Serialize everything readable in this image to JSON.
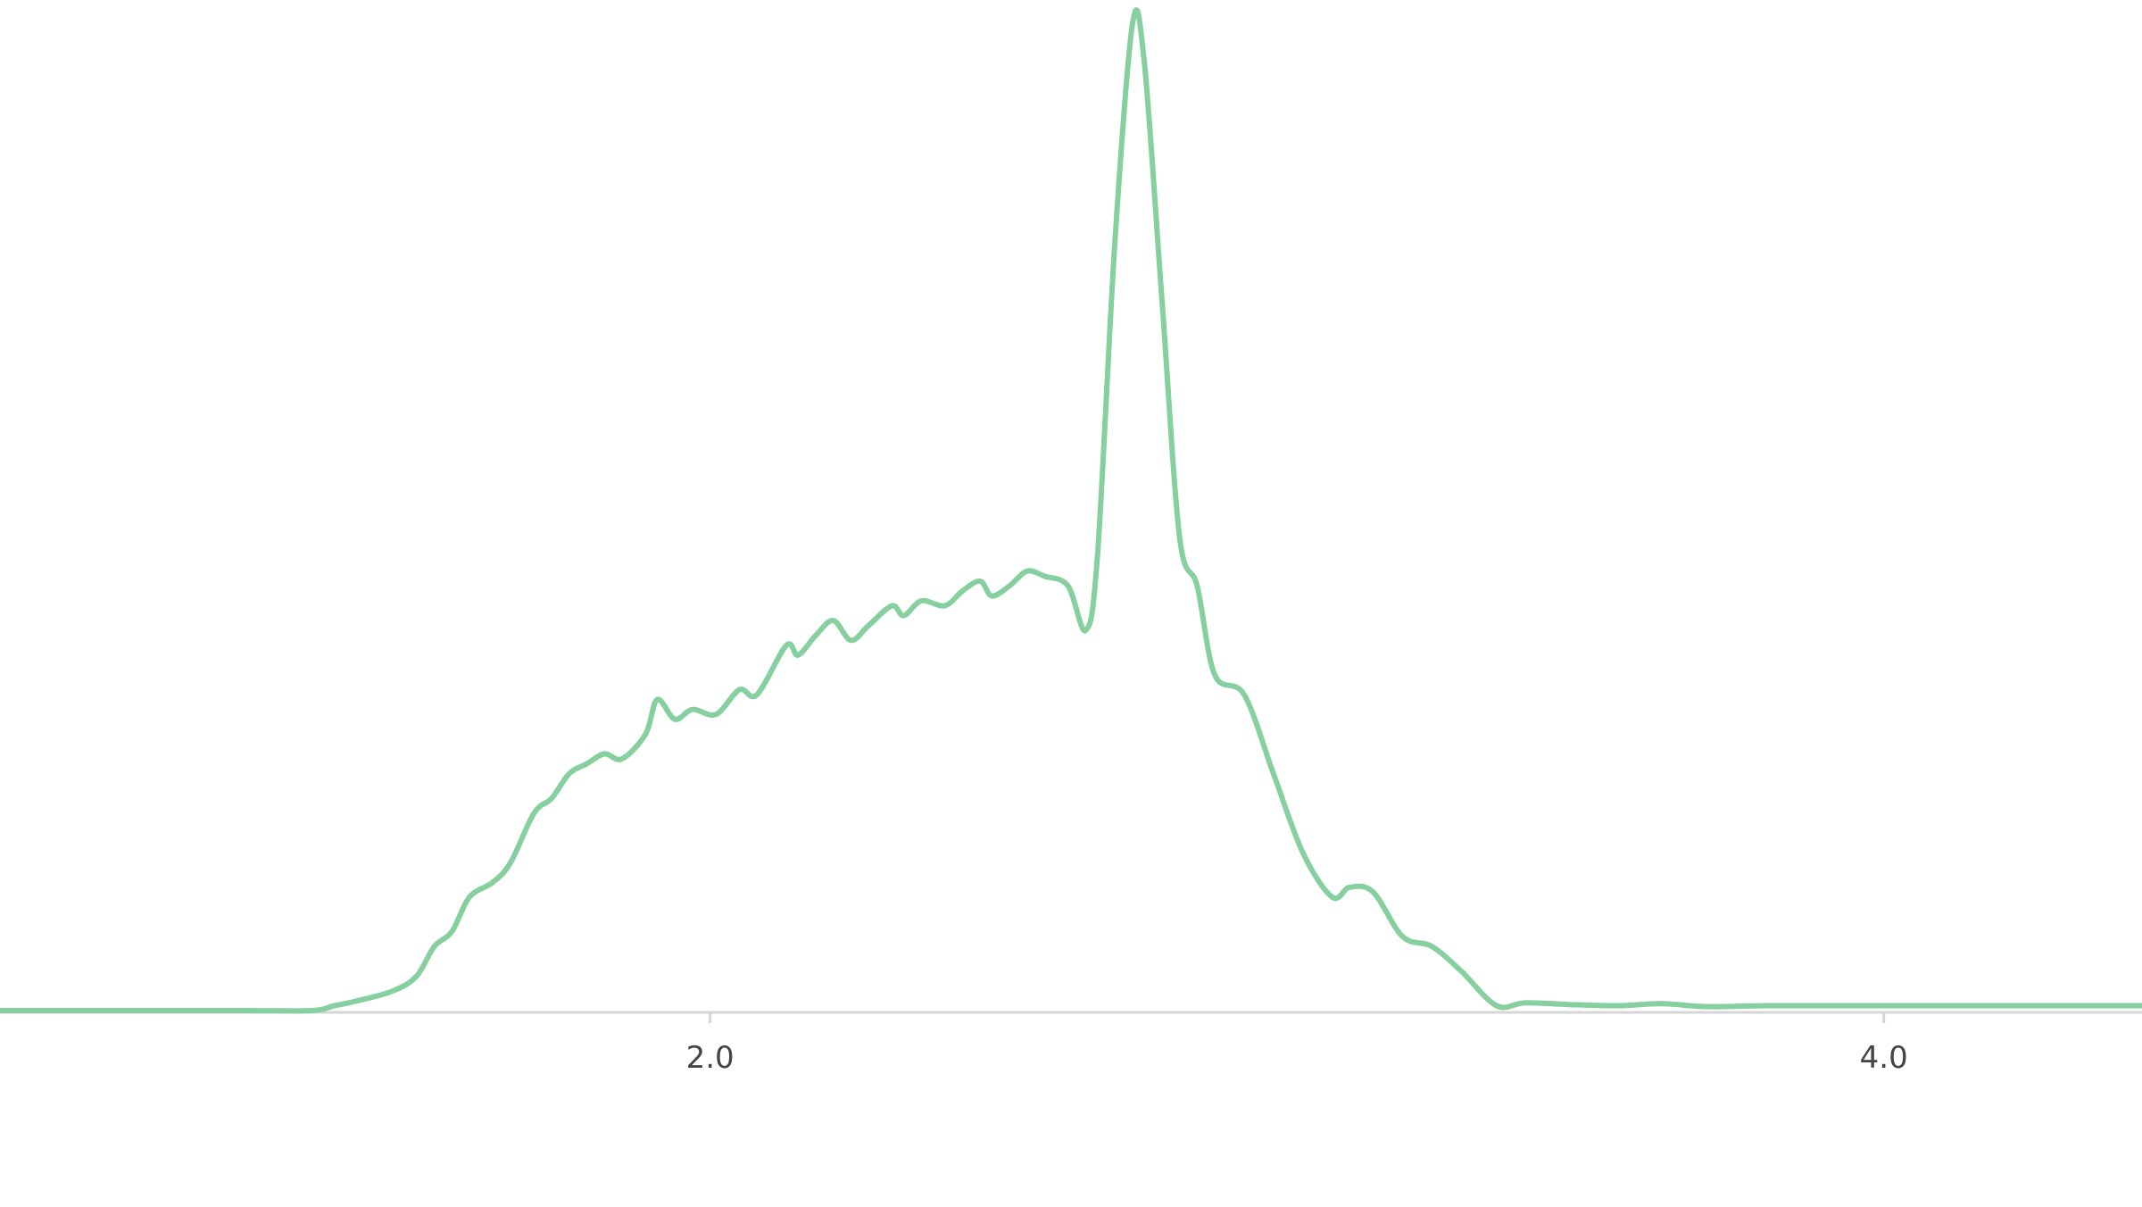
{
  "chart_data": {
    "type": "area",
    "title": "",
    "xlabel": "",
    "ylabel": "",
    "xlim": [
      0.79,
      4.44
    ],
    "ylim": [
      0,
      1.0
    ],
    "grid": false,
    "legend": "none",
    "x_ticks": [
      {
        "value": 2.0,
        "label": "2.0"
      },
      {
        "value": 4.0,
        "label": "4.0"
      }
    ],
    "series": [
      {
        "color": "#86d0a0",
        "points": [
          [
            0.79,
            0.0
          ],
          [
            1.2,
            0.0
          ],
          [
            1.32,
            0.0
          ],
          [
            1.36,
            0.005
          ],
          [
            1.4,
            0.01
          ],
          [
            1.46,
            0.02
          ],
          [
            1.5,
            0.035
          ],
          [
            1.53,
            0.065
          ],
          [
            1.56,
            0.08
          ],
          [
            1.59,
            0.115
          ],
          [
            1.63,
            0.13
          ],
          [
            1.66,
            0.15
          ],
          [
            1.7,
            0.2
          ],
          [
            1.73,
            0.215
          ],
          [
            1.76,
            0.24
          ],
          [
            1.79,
            0.25
          ],
          [
            1.82,
            0.26
          ],
          [
            1.85,
            0.255
          ],
          [
            1.89,
            0.28
          ],
          [
            1.91,
            0.315
          ],
          [
            1.94,
            0.295
          ],
          [
            1.97,
            0.305
          ],
          [
            2.01,
            0.3
          ],
          [
            2.05,
            0.325
          ],
          [
            2.08,
            0.32
          ],
          [
            2.13,
            0.37
          ],
          [
            2.15,
            0.36
          ],
          [
            2.18,
            0.38
          ],
          [
            2.21,
            0.395
          ],
          [
            2.24,
            0.375
          ],
          [
            2.27,
            0.39
          ],
          [
            2.31,
            0.41
          ],
          [
            2.33,
            0.4
          ],
          [
            2.36,
            0.415
          ],
          [
            2.4,
            0.41
          ],
          [
            2.43,
            0.425
          ],
          [
            2.46,
            0.435
          ],
          [
            2.48,
            0.42
          ],
          [
            2.51,
            0.43
          ],
          [
            2.54,
            0.445
          ],
          [
            2.57,
            0.44
          ],
          [
            2.61,
            0.43
          ],
          [
            2.64,
            0.385
          ],
          [
            2.66,
            0.46
          ],
          [
            2.69,
            0.78
          ],
          [
            2.72,
            1.0
          ],
          [
            2.74,
            0.96
          ],
          [
            2.77,
            0.72
          ],
          [
            2.8,
            0.48
          ],
          [
            2.83,
            0.43
          ],
          [
            2.86,
            0.34
          ],
          [
            2.91,
            0.32
          ],
          [
            2.96,
            0.24
          ],
          [
            3.01,
            0.16
          ],
          [
            3.06,
            0.115
          ],
          [
            3.09,
            0.125
          ],
          [
            3.13,
            0.12
          ],
          [
            3.18,
            0.075
          ],
          [
            3.23,
            0.065
          ],
          [
            3.28,
            0.04
          ],
          [
            3.34,
            0.005
          ],
          [
            3.39,
            0.008
          ],
          [
            3.47,
            0.006
          ],
          [
            3.55,
            0.005
          ],
          [
            3.62,
            0.007
          ],
          [
            3.7,
            0.004
          ],
          [
            3.8,
            0.005
          ],
          [
            3.95,
            0.005
          ],
          [
            4.1,
            0.005
          ],
          [
            4.44,
            0.005
          ]
        ]
      }
    ]
  }
}
